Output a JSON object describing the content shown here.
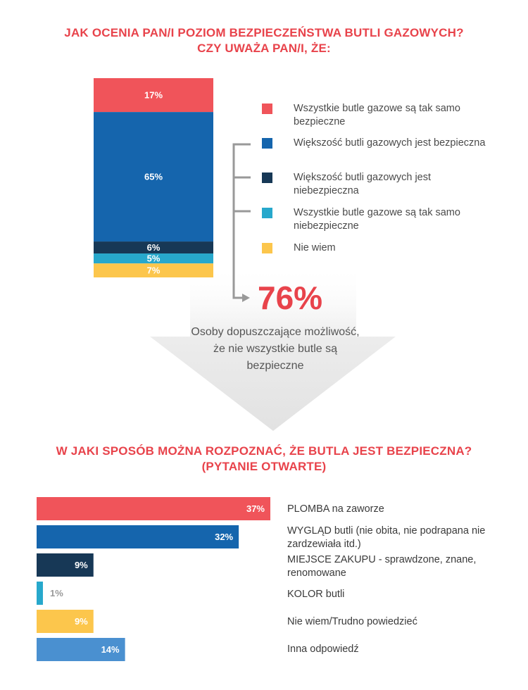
{
  "title1": {
    "line1": "JAK OCENIA PAN/I POZIOM BEZPIECZEŃSTWA BUTLI GAZOWYCH?",
    "line2": "CZY UWAŻA PAN/I, ŻE:"
  },
  "title2": {
    "line1": "W JAKI SPOSÓB MOŻNA ROZPOZNAĆ, ŻE BUTLA JEST BEZPIECZNA?",
    "line2": "(PYTANIE OTWARTE)"
  },
  "chart_data": [
    {
      "type": "bar",
      "stacked": true,
      "orientation": "vertical",
      "categories": [
        "Wszystkie butle gazowe są tak samo bezpieczne",
        "Większość butli gazowych jest bezpieczna",
        "Większość butli gazowych jest niebezpieczna",
        "Wszystkie butle gazowe są tak samo niebezpieczne",
        "Nie wiem"
      ],
      "values": [
        17,
        65,
        6,
        5,
        7
      ],
      "value_labels": [
        "17%",
        "65%",
        "6%",
        "5%",
        "7%"
      ],
      "colors": [
        "#f0545a",
        "#1565ad",
        "#173856",
        "#27a8cc",
        "#fcc64c"
      ],
      "legend_position": "right",
      "summary": {
        "value": "76%",
        "text": "Osoby dopuszczające możliwość, że nie wszystkie butle są bezpieczne"
      }
    },
    {
      "type": "bar",
      "orientation": "horizontal",
      "categories": [
        "PLOMBA na zaworze",
        "WYGLĄD butli (nie obita, nie podrapana nie zardzewiała itd.)",
        "MIEJSCE ZAKUPU - sprawdzone, znane, renomowane",
        "KOLOR butli",
        "Nie wiem/Trudno powiedzieć",
        "Inna odpowiedź"
      ],
      "values": [
        37,
        32,
        9,
        1,
        9,
        14
      ],
      "value_labels": [
        "37%",
        "32%",
        "9%",
        "1%",
        "9%",
        "14%"
      ],
      "colors": [
        "#f0545a",
        "#1565ad",
        "#173856",
        "#27a8cc",
        "#fcc64c",
        "#4a90d0"
      ]
    }
  ]
}
